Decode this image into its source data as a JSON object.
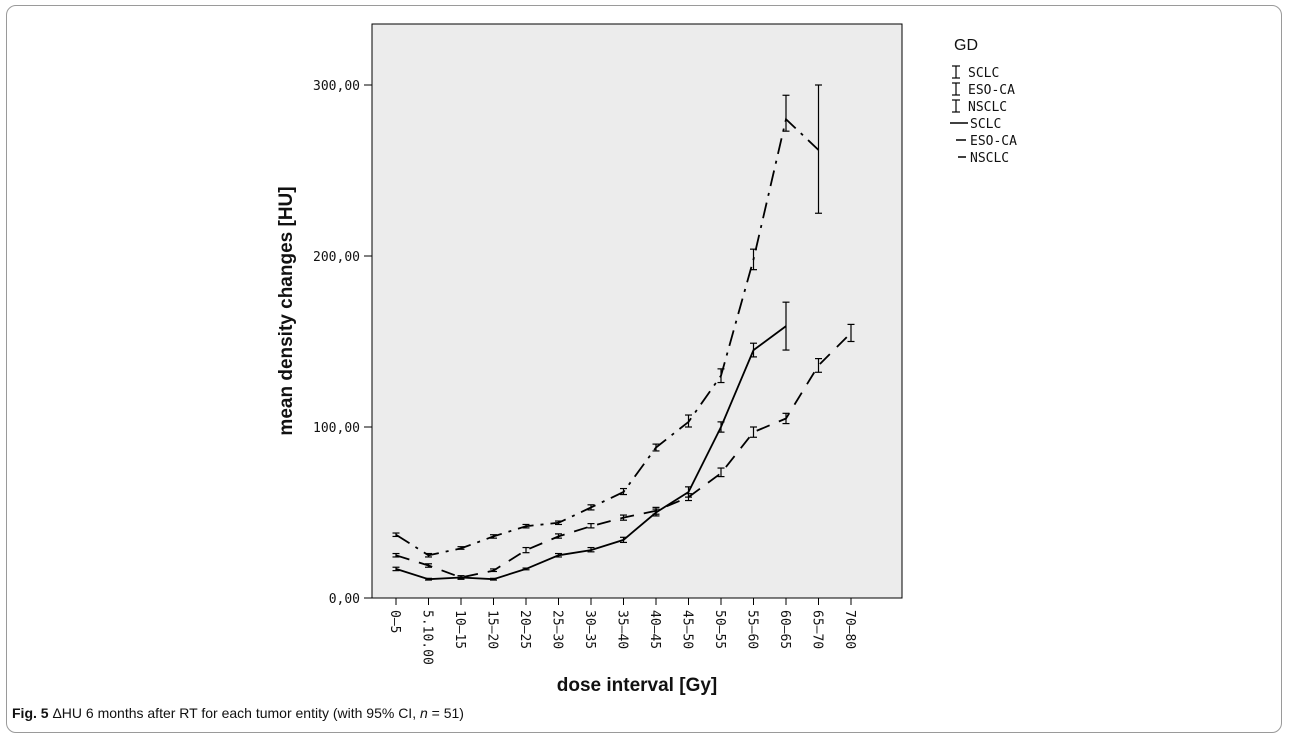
{
  "caption": {
    "label": "Fig. 5",
    "text_a": "ΔHU 6 months after RT for each tumor entity (with 95% CI, ",
    "n_symbol": "n",
    "text_b": " = 51)"
  },
  "chart_data": {
    "type": "line",
    "title": "",
    "xlabel": "dose interval [Gy]",
    "ylabel": "mean density changes [HU]",
    "ylim": [
      0,
      330
    ],
    "yticks": [
      {
        "value": 0,
        "label": "0,00"
      },
      {
        "value": 100,
        "label": "100,00"
      },
      {
        "value": 200,
        "label": "200,00"
      },
      {
        "value": 300,
        "label": "300,00"
      }
    ],
    "categories": [
      "0–5",
      "5.10.00",
      "10–15",
      "15–20",
      "20–25",
      "25–30",
      "30–35",
      "35–40",
      "40–45",
      "45–50",
      "50–55",
      "55–60",
      "60–65",
      "65–70",
      "70–80"
    ],
    "grid": false,
    "legend": {
      "title": "GD",
      "placement": "right",
      "errorbar_entries": [
        "SCLC",
        "ESO-CA",
        "NSCLC"
      ],
      "line_entries": [
        "SCLC",
        "ESO-CA",
        "NSCLC"
      ]
    },
    "series": [
      {
        "name": "SCLC",
        "style": "solid",
        "values": [
          17,
          11,
          12,
          11,
          17,
          25,
          28,
          34,
          50,
          62,
          100,
          145,
          159,
          null,
          null
        ],
        "ci_low": [
          16,
          10.5,
          11,
          10.5,
          16.5,
          24,
          27,
          32.5,
          48,
          59,
          97,
          141,
          145,
          null,
          null
        ],
        "ci_high": [
          18,
          11.5,
          13,
          11.5,
          17.5,
          26,
          29.5,
          35.5,
          52,
          65,
          103,
          149,
          173,
          null,
          null
        ]
      },
      {
        "name": "ESO-CA",
        "style": "dashdot",
        "values": [
          37,
          25,
          29,
          36,
          42,
          44,
          53,
          62,
          88,
          103,
          130,
          198,
          280,
          262,
          null
        ],
        "ci_low": [
          36,
          24,
          28.5,
          35,
          41,
          43,
          51.5,
          60.5,
          86,
          100,
          126,
          192,
          273,
          225,
          null
        ],
        "ci_high": [
          38,
          26,
          30,
          37,
          43,
          45,
          54.5,
          64,
          90,
          107,
          134,
          204,
          294,
          300,
          null
        ]
      },
      {
        "name": "NSCLC",
        "style": "dashed",
        "values": [
          25,
          19,
          12,
          16,
          28,
          36,
          42,
          47,
          51,
          59,
          73,
          97,
          105,
          136,
          155
        ],
        "ci_low": [
          24,
          18,
          11,
          15.5,
          26.5,
          35,
          41,
          45.5,
          49,
          57,
          71,
          94,
          102,
          132,
          150
        ],
        "ci_high": [
          26,
          20,
          13,
          17,
          29.5,
          37.5,
          43.5,
          48.5,
          53,
          61,
          76,
          100,
          108,
          140,
          160
        ]
      }
    ]
  }
}
